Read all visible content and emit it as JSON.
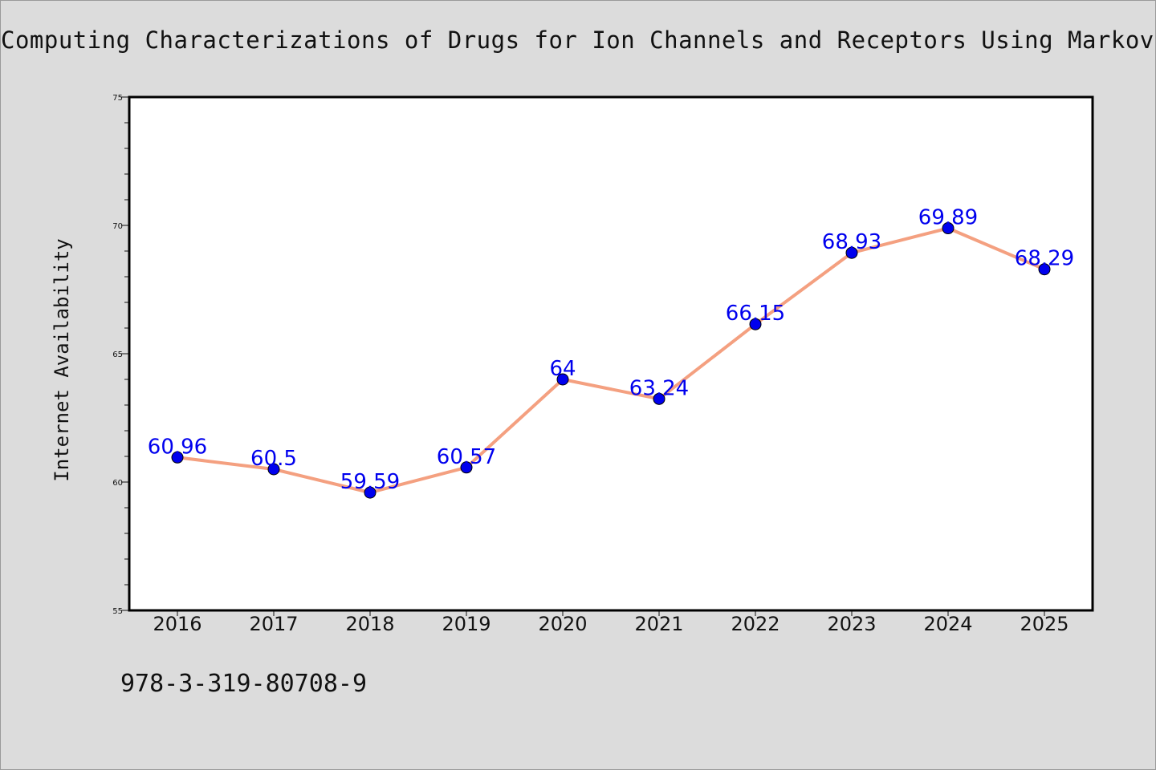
{
  "title": "Computing Characterizations of Drugs for Ion Channels and Receptors Using Markov",
  "footnote": "978-3-319-80708-9",
  "chart_data": {
    "type": "line",
    "title": "Computing Characterizations of Drugs for Ion Channels and Receptors Using Markov",
    "xlabel": "",
    "ylabel": "Internet Availability",
    "categories": [
      "2016",
      "2017",
      "2018",
      "2019",
      "2020",
      "2021",
      "2022",
      "2023",
      "2024",
      "2025"
    ],
    "series": [
      {
        "values": [
          60.96,
          60.5,
          59.59,
          60.57,
          64,
          63.24,
          66.15,
          68.93,
          69.89,
          68.29
        ],
        "data_labels": [
          "60.96",
          "60.5",
          "59.59",
          "60.57",
          "64",
          "63.24",
          "66.15",
          "68.93",
          "69.89",
          "68.29"
        ],
        "line_color": "#f4a080",
        "marker_color": "#0000ee"
      }
    ],
    "ylim": [
      55,
      75
    ],
    "yticks": [
      55,
      60,
      65,
      70,
      75
    ],
    "ytick_labels": [
      "55",
      "60",
      "65",
      "70",
      "75"
    ],
    "grid": false,
    "legend": "none"
  }
}
